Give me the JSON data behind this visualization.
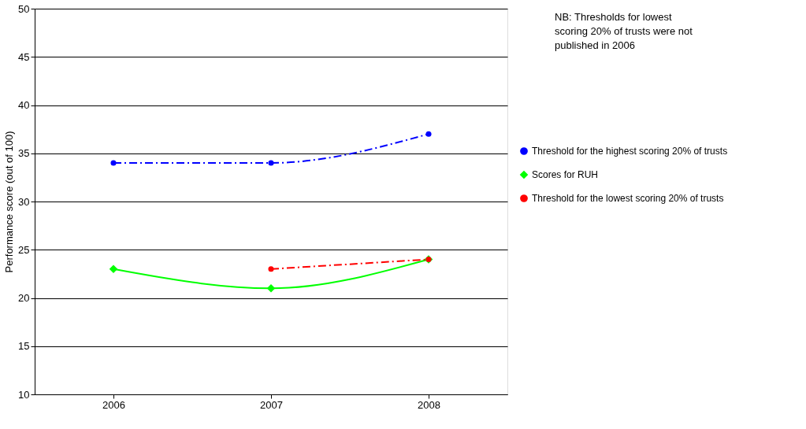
{
  "chart_data": {
    "type": "line",
    "ylabel": "Performance score (out of 100)",
    "categories": [
      "2006",
      "2007",
      "2008"
    ],
    "series": [
      {
        "name": "Threshold for the highest scoring 20% of trusts",
        "color": "#0000ff",
        "values": [
          34,
          34,
          37
        ],
        "marker": "circle",
        "line_style": "dashed"
      },
      {
        "name": "Scores for RUH",
        "color": "#00ff00",
        "values": [
          23,
          21,
          24
        ],
        "marker": "diamond",
        "line_style": "solid"
      },
      {
        "name": "Threshold for the lowest scoring 20% of trusts",
        "color": "#ff0000",
        "values": [
          null,
          23,
          24
        ],
        "marker": "circle",
        "line_style": "dashed"
      }
    ],
    "ylim": [
      10,
      50
    ],
    "yticks": [
      10,
      15,
      20,
      25,
      30,
      35,
      40,
      45,
      50
    ],
    "grid": "y",
    "legend": "right",
    "annotations": [
      "NB: Thresholds for lowest scoring 20% of trusts were not published in 2006"
    ]
  }
}
